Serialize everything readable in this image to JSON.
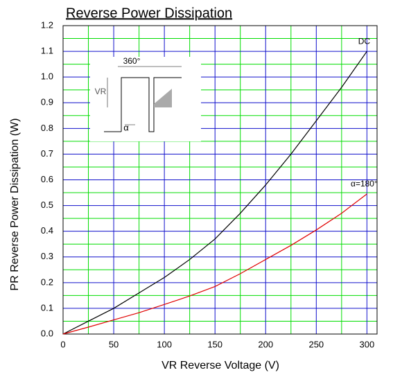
{
  "chart_data": {
    "type": "line",
    "title": "Reverse Power Dissipation",
    "x_label": "VR      Reverse Voltage    (V)",
    "y_label": "PR      Reverse  Power  Dissipation    (W)",
    "x": [
      0,
      25,
      50,
      75,
      100,
      125,
      150,
      175,
      200,
      225,
      250,
      275,
      300
    ],
    "series": [
      {
        "name": "DC",
        "color": "#000000",
        "values": [
          0,
          0.05,
          0.1,
          0.16,
          0.22,
          0.29,
          0.37,
          0.47,
          0.58,
          0.7,
          0.83,
          0.96,
          1.1
        ]
      },
      {
        "name": "α=180°",
        "color": "#e00000",
        "values": [
          0,
          0.027,
          0.055,
          0.083,
          0.115,
          0.148,
          0.185,
          0.235,
          0.29,
          0.345,
          0.405,
          0.47,
          0.545
        ]
      }
    ],
    "xlim": [
      0,
      310
    ],
    "ylim": [
      0,
      1.2
    ],
    "xticks": [
      0,
      50,
      100,
      150,
      200,
      250,
      300
    ],
    "yticks": [
      {
        "value": 0,
        "label": "0.0"
      },
      0.1,
      0.2,
      0.3,
      0.4,
      0.5,
      0.6,
      0.7,
      0.8,
      0.9,
      {
        "value": 1,
        "label": "1.0"
      },
      1.1,
      1.2
    ],
    "minor_xticks": [
      25,
      75,
      125,
      175,
      225,
      275
    ],
    "minor_yticks": [
      0.05,
      0.15,
      0.25,
      0.35,
      0.45,
      0.55,
      0.65,
      0.75,
      0.85,
      0.95,
      1.05,
      1.15
    ],
    "grid": true,
    "inset_labels": [
      "360°",
      "VR",
      "α"
    ]
  }
}
